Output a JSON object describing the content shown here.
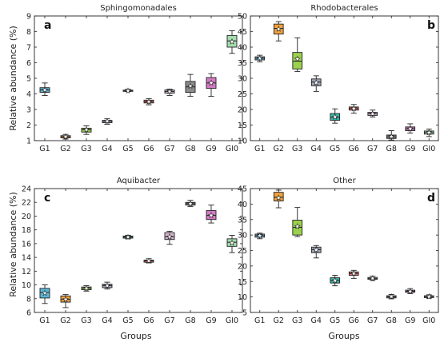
{
  "xlabel": "Groups",
  "ylabel": "Relative abundance (%)",
  "colors": {
    "G1": "#5bb5d6",
    "G2": "#f0a23c",
    "G3": "#9ad24c",
    "G4": "#9ea3b4",
    "G5": "#39b9a9",
    "G6": "#ee6b66",
    "G7": "#d8b6d0",
    "G8": "#8c8c8c",
    "G9": "#d37ac3",
    "GI0": "#a6dcae"
  },
  "chart_data": [
    {
      "type": "box",
      "letter": "a",
      "title": "Sphingomonadales",
      "categories": [
        "G1",
        "G2",
        "G3",
        "G4",
        "G5",
        "G6",
        "G7",
        "G8",
        "G9",
        "GI0"
      ],
      "yticks": [
        1,
        2,
        3,
        4,
        5,
        6,
        7,
        8,
        9
      ],
      "ylim": [
        1,
        9
      ],
      "boxes": [
        {
          "min": 3.9,
          "q1": 4.1,
          "median": 4.25,
          "q3": 4.4,
          "max": 4.7,
          "mean": 4.25
        },
        {
          "min": 1.1,
          "q1": 1.18,
          "median": 1.25,
          "q3": 1.32,
          "max": 1.4,
          "mean": 1.25
        },
        {
          "min": 1.4,
          "q1": 1.55,
          "median": 1.7,
          "q3": 1.8,
          "max": 1.95,
          "mean": 1.7
        },
        {
          "min": 2.05,
          "q1": 2.15,
          "median": 2.25,
          "q3": 2.3,
          "max": 2.4,
          "mean": 2.25
        },
        {
          "min": 4.15,
          "q1": 4.18,
          "median": 4.2,
          "q3": 4.24,
          "max": 4.3,
          "mean": 4.2
        },
        {
          "min": 3.3,
          "q1": 3.42,
          "median": 3.5,
          "q3": 3.6,
          "max": 3.7,
          "mean": 3.5
        },
        {
          "min": 3.9,
          "q1": 4.05,
          "median": 4.15,
          "q3": 4.25,
          "max": 4.3,
          "mean": 4.15
        },
        {
          "min": 3.85,
          "q1": 4.1,
          "median": 4.45,
          "q3": 4.8,
          "max": 5.25,
          "mean": 4.5
        },
        {
          "min": 3.85,
          "q1": 4.35,
          "median": 4.7,
          "q3": 5.05,
          "max": 5.3,
          "mean": 4.7
        },
        {
          "min": 6.6,
          "q1": 7.0,
          "median": 7.4,
          "q3": 7.75,
          "max": 8.05,
          "mean": 7.35
        }
      ]
    },
    {
      "type": "box",
      "letter": "b",
      "title": "Rhodobacterales",
      "categories": [
        "G1",
        "G2",
        "G3",
        "G4",
        "G5",
        "G6",
        "G7",
        "G8",
        "G9",
        "GI0"
      ],
      "yticks": [
        10,
        15,
        20,
        25,
        30,
        35,
        40,
        45,
        50
      ],
      "ylim": [
        10,
        50
      ],
      "boxes": [
        {
          "min": 35.3,
          "q1": 35.9,
          "median": 36.4,
          "q3": 36.9,
          "max": 37.4,
          "mean": 36.4
        },
        {
          "min": 42.0,
          "q1": 44.2,
          "median": 46.0,
          "q3": 47.4,
          "max": 48.2,
          "mean": 45.8
        },
        {
          "min": 32.2,
          "q1": 33.0,
          "median": 35.5,
          "q3": 38.3,
          "max": 43.0,
          "mean": 36.2
        },
        {
          "min": 25.8,
          "q1": 27.6,
          "median": 28.8,
          "q3": 29.8,
          "max": 30.8,
          "mean": 28.6
        },
        {
          "min": 15.6,
          "q1": 16.5,
          "median": 17.5,
          "q3": 18.7,
          "max": 20.2,
          "mean": 17.6
        },
        {
          "min": 18.8,
          "q1": 19.8,
          "median": 20.3,
          "q3": 20.8,
          "max": 21.6,
          "mean": 20.3
        },
        {
          "min": 17.6,
          "q1": 18.1,
          "median": 18.6,
          "q3": 19.1,
          "max": 19.8,
          "mean": 18.6
        },
        {
          "min": 10.2,
          "q1": 10.7,
          "median": 11.2,
          "q3": 11.8,
          "max": 13.2,
          "mean": 11.3
        },
        {
          "min": 12.4,
          "q1": 13.2,
          "median": 13.8,
          "q3": 14.4,
          "max": 15.4,
          "mean": 13.8
        },
        {
          "min": 11.3,
          "q1": 12.1,
          "median": 12.6,
          "q3": 13.1,
          "max": 13.7,
          "mean": 12.6
        }
      ]
    },
    {
      "type": "box",
      "letter": "c",
      "title": "Aquibacter",
      "categories": [
        "G1",
        "G2",
        "G3",
        "G4",
        "G5",
        "G6",
        "G7",
        "G8",
        "G9",
        "GI0"
      ],
      "yticks": [
        6,
        8,
        10,
        12,
        14,
        16,
        18,
        20,
        22,
        24
      ],
      "ylim": [
        6,
        24
      ],
      "boxes": [
        {
          "min": 7.3,
          "q1": 8.1,
          "median": 8.9,
          "q3": 9.5,
          "max": 10.0,
          "mean": 8.8
        },
        {
          "min": 6.7,
          "q1": 7.5,
          "median": 7.9,
          "q3": 8.4,
          "max": 8.6,
          "mean": 7.9
        },
        {
          "min": 9.1,
          "q1": 9.3,
          "median": 9.5,
          "q3": 9.7,
          "max": 9.9,
          "mean": 9.5
        },
        {
          "min": 9.4,
          "q1": 9.6,
          "median": 9.9,
          "q3": 10.1,
          "max": 10.4,
          "mean": 9.9
        },
        {
          "min": 16.7,
          "q1": 16.8,
          "median": 16.95,
          "q3": 17.1,
          "max": 17.2,
          "mean": 16.95
        },
        {
          "min": 13.2,
          "q1": 13.3,
          "median": 13.5,
          "q3": 13.6,
          "max": 13.8,
          "mean": 13.5
        },
        {
          "min": 15.9,
          "q1": 16.6,
          "median": 17.0,
          "q3": 17.6,
          "max": 17.8,
          "mean": 17.0
        },
        {
          "min": 21.4,
          "q1": 21.6,
          "median": 21.8,
          "q3": 22.0,
          "max": 22.3,
          "mean": 21.8
        },
        {
          "min": 19.0,
          "q1": 19.5,
          "median": 20.1,
          "q3": 20.8,
          "max": 21.6,
          "mean": 20.1
        },
        {
          "min": 14.7,
          "q1": 15.6,
          "median": 16.2,
          "q3": 16.7,
          "max": 17.2,
          "mean": 16.1
        }
      ]
    },
    {
      "type": "box",
      "letter": "d",
      "title": "Other",
      "categories": [
        "G1",
        "G2",
        "G3",
        "G4",
        "G5",
        "G6",
        "G7",
        "G8",
        "G9",
        "GI0"
      ],
      "yticks": [
        5,
        10,
        15,
        20,
        25,
        30,
        35,
        40,
        45
      ],
      "ylim": [
        5,
        45
      ],
      "boxes": [
        {
          "min": 28.8,
          "q1": 29.3,
          "median": 29.8,
          "q3": 30.3,
          "max": 30.6,
          "mean": 29.8
        },
        {
          "min": 38.8,
          "q1": 41.0,
          "median": 42.2,
          "q3": 43.8,
          "max": 44.5,
          "mean": 42.0
        },
        {
          "min": 29.5,
          "q1": 30.0,
          "median": 32.5,
          "q3": 34.8,
          "max": 38.9,
          "mean": 32.8
        },
        {
          "min": 22.6,
          "q1": 24.3,
          "median": 25.3,
          "q3": 26.1,
          "max": 26.6,
          "mean": 25.2
        },
        {
          "min": 13.6,
          "q1": 14.5,
          "median": 15.3,
          "q3": 16.2,
          "max": 17.0,
          "mean": 15.3
        },
        {
          "min": 16.0,
          "q1": 17.0,
          "median": 17.6,
          "q3": 18.1,
          "max": 18.6,
          "mean": 17.6
        },
        {
          "min": 15.3,
          "q1": 15.7,
          "median": 16.0,
          "q3": 16.3,
          "max": 16.7,
          "mean": 16.0
        },
        {
          "min": 9.4,
          "q1": 9.7,
          "median": 10.1,
          "q3": 10.4,
          "max": 10.8,
          "mean": 10.1
        },
        {
          "min": 11.1,
          "q1": 11.5,
          "median": 11.8,
          "q3": 12.2,
          "max": 12.7,
          "mean": 11.8
        },
        {
          "min": 9.6,
          "q1": 9.8,
          "median": 10.1,
          "q3": 10.4,
          "max": 10.7,
          "mean": 10.1
        }
      ]
    }
  ]
}
